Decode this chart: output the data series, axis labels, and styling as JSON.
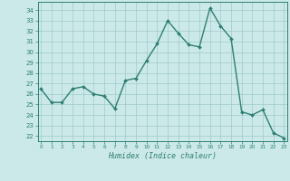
{
  "x": [
    0,
    1,
    2,
    3,
    4,
    5,
    6,
    7,
    8,
    9,
    10,
    11,
    12,
    13,
    14,
    15,
    16,
    17,
    18,
    19,
    20,
    21,
    22,
    23
  ],
  "y": [
    26.5,
    25.2,
    25.2,
    26.5,
    26.7,
    26.0,
    25.8,
    24.6,
    27.3,
    27.5,
    29.2,
    30.8,
    33.0,
    31.8,
    30.7,
    30.5,
    34.2,
    32.5,
    31.3,
    24.3,
    24.0,
    24.5,
    22.3,
    21.8
  ],
  "xlabel": "Humidex (Indice chaleur)",
  "yticks": [
    22,
    23,
    24,
    25,
    26,
    27,
    28,
    29,
    30,
    31,
    32,
    33,
    34
  ],
  "ylim_min": 21.5,
  "ylim_max": 34.8,
  "xlim_min": -0.3,
  "xlim_max": 23.3,
  "line_color": "#2d7f72",
  "bg_color": "#cce9e9",
  "grid_color": "#a0c8c8"
}
